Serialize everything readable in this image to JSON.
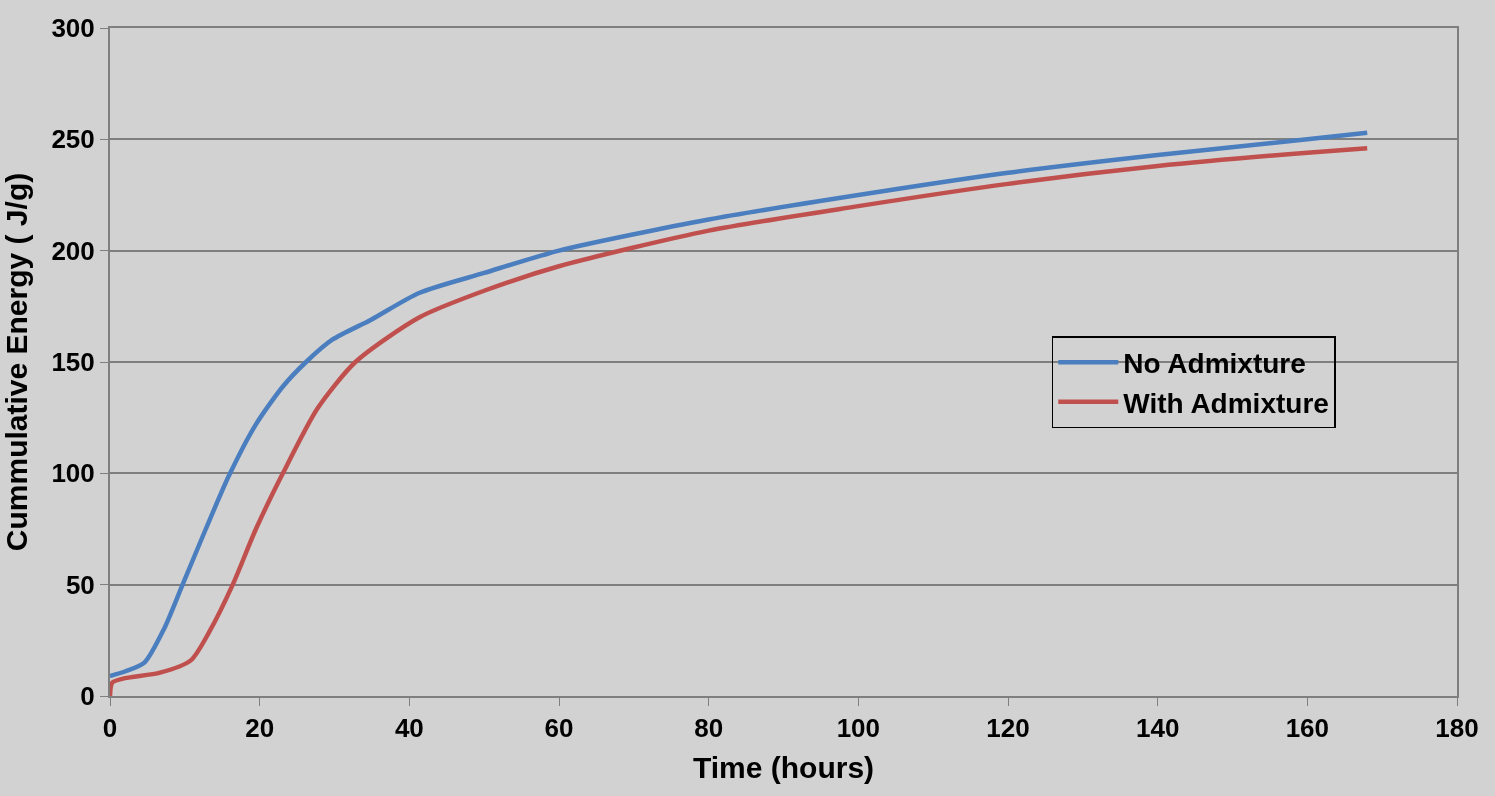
{
  "chart_data": {
    "type": "line",
    "xlabel": "Time (hours)",
    "ylabel": "Cummulative Energy ( J/g)",
    "xlim": [
      0,
      180
    ],
    "xticks": [
      0,
      20,
      40,
      60,
      80,
      100,
      120,
      140,
      160,
      180
    ],
    "ylim": [
      0,
      300
    ],
    "yticks": [
      0,
      50,
      100,
      150,
      200,
      250,
      300
    ],
    "grid": "y",
    "legend": "right",
    "marker": "none",
    "line_style": "solid",
    "series": [
      {
        "name": "No Admixture",
        "color": "#4a7ebf",
        "x": [
          0,
          2,
          4.6,
          7.2,
          9.7,
          12.8,
          15.9,
          19.5,
          23.1,
          26.2,
          29.7,
          34.9,
          41.3,
          50,
          60,
          80,
          100,
          120,
          140,
          160,
          168
        ],
        "values": [
          9,
          11,
          15,
          30,
          50,
          75,
          99,
          122,
          139,
          150,
          160,
          169,
          181,
          190,
          200,
          214,
          225,
          235,
          243,
          250,
          253
        ]
      },
      {
        "name": "With Admixture",
        "color": "#c0504d",
        "x": [
          0,
          0.3,
          2,
          6.7,
          10.8,
          13.3,
          16.4,
          19.5,
          23.1,
          27.7,
          32.8,
          41.3,
          50,
          60,
          80,
          100,
          120,
          140,
          160,
          168
        ],
        "values": [
          0,
          6,
          8,
          10.5,
          16,
          29,
          50,
          75,
          100,
          129,
          150,
          170,
          182,
          193,
          209,
          220,
          230,
          238,
          244,
          246
        ]
      }
    ]
  }
}
